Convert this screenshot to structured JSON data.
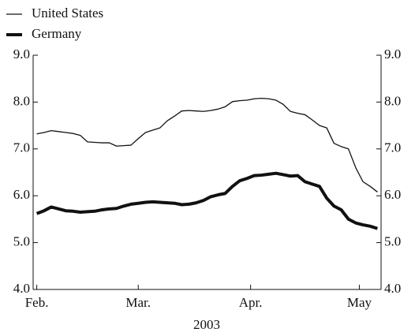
{
  "chart_data": {
    "type": "line",
    "xlabel": "2003",
    "x": [
      0,
      2,
      4,
      6,
      8,
      10,
      12,
      14,
      16,
      18,
      20,
      22,
      24,
      26,
      28,
      30,
      32,
      34,
      36,
      38,
      40,
      42,
      44,
      46,
      48,
      50,
      52,
      54,
      56,
      58,
      60,
      62,
      64,
      66,
      68,
      70,
      72,
      74,
      76,
      78,
      80,
      82,
      84,
      86,
      88,
      90,
      92,
      94
    ],
    "series": [
      {
        "name": "United States",
        "color": "#111111",
        "width": 1.3,
        "values": [
          7.32,
          7.35,
          7.39,
          7.37,
          7.35,
          7.33,
          7.29,
          7.15,
          7.14,
          7.13,
          7.13,
          7.06,
          7.07,
          7.08,
          7.22,
          7.35,
          7.4,
          7.45,
          7.6,
          7.7,
          7.81,
          7.82,
          7.81,
          7.8,
          7.82,
          7.85,
          7.9,
          8.01,
          8.03,
          8.04,
          8.07,
          8.08,
          8.07,
          8.04,
          7.95,
          7.8,
          7.76,
          7.73,
          7.62,
          7.5,
          7.45,
          7.12,
          7.05,
          7.0,
          6.6,
          6.3,
          6.2,
          6.08
        ]
      },
      {
        "name": "Germany",
        "color": "#111111",
        "width": 4,
        "values": [
          5.62,
          5.68,
          5.76,
          5.72,
          5.68,
          5.67,
          5.65,
          5.66,
          5.67,
          5.7,
          5.72,
          5.73,
          5.78,
          5.82,
          5.84,
          5.86,
          5.87,
          5.86,
          5.85,
          5.84,
          5.81,
          5.82,
          5.85,
          5.9,
          5.98,
          6.02,
          6.05,
          6.2,
          6.32,
          6.37,
          6.43,
          6.44,
          6.46,
          6.48,
          6.45,
          6.42,
          6.43,
          6.3,
          6.25,
          6.2,
          5.95,
          5.78,
          5.7,
          5.5,
          5.42,
          5.38,
          5.35,
          5.3
        ]
      }
    ],
    "xlim": [
      -1,
      95
    ],
    "xticks": [
      {
        "value": 0,
        "label": "Feb."
      },
      {
        "value": 28,
        "label": "Mar."
      },
      {
        "value": 59,
        "label": "Apr."
      },
      {
        "value": 89,
        "label": "May"
      }
    ],
    "ylim": [
      4,
      9
    ],
    "yticks": [
      {
        "value": 4,
        "label": "4.0"
      },
      {
        "value": 5,
        "label": "5.0"
      },
      {
        "value": 6,
        "label": "6.0"
      },
      {
        "value": 7,
        "label": "7.0"
      },
      {
        "value": 8,
        "label": "8.0"
      },
      {
        "value": 9,
        "label": "9.0"
      }
    ],
    "legend": "top-left"
  }
}
